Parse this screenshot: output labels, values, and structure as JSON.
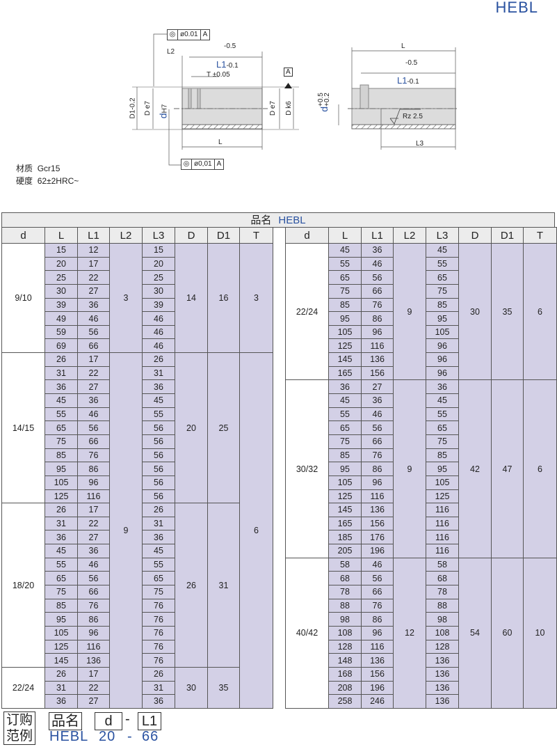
{
  "header": {
    "title": "HEBL"
  },
  "drawing": {
    "left": {
      "tolerance_top": {
        "symbol": "concentricity-icon",
        "value": "ø0.01",
        "datum": "A"
      },
      "dim_minus": "-0.5",
      "L2": "L2",
      "L1": "L1",
      "L1_tol": "-0.1",
      "T": "T ±0.05",
      "datum": "A",
      "D1": "D1-0.2",
      "De7": "D e7",
      "d": "d",
      "d_tol": "H7",
      "De7_right": "D e7",
      "Dk6": "D k6",
      "L": "L",
      "tolerance_bottom": {
        "symbol": "concentricity-icon",
        "value": "ø0,01",
        "datum": "A"
      }
    },
    "right": {
      "L": "L",
      "dim_minus": "-0.5",
      "L1": "L1",
      "L1_tol": "-0.1",
      "d": "d",
      "d_tol_upper": "+0.5",
      "d_tol_lower": "+0.2",
      "roughness": "Rz 2.5",
      "L3": "L3"
    }
  },
  "material": {
    "label": "材质",
    "value": "Gcr15"
  },
  "hardness": {
    "label": "硬度",
    "value": "62±2HRC~"
  },
  "table": {
    "title_label": "品名",
    "title_value": "HEBL",
    "columns": [
      "d",
      "L",
      "L1",
      "L2",
      "L3",
      "D",
      "D1",
      "T"
    ],
    "left_groups": [
      {
        "d": "9/10",
        "L": [
          15,
          20,
          25,
          30,
          39,
          49,
          59,
          69
        ],
        "L1": [
          12,
          17,
          22,
          27,
          36,
          46,
          56,
          66
        ],
        "L3": [
          15,
          20,
          25,
          30,
          39,
          46,
          46,
          46
        ],
        "D": 14,
        "D1": 16
      },
      {
        "d": "14/15",
        "L": [
          26,
          31,
          36,
          45,
          55,
          65,
          75,
          85,
          95,
          105,
          125
        ],
        "L1": [
          17,
          22,
          27,
          36,
          46,
          56,
          66,
          76,
          86,
          96,
          116
        ],
        "L3": [
          26,
          31,
          36,
          45,
          55,
          56,
          56,
          56,
          56,
          56,
          56
        ],
        "D": 20,
        "D1": 25
      },
      {
        "d": "18/20",
        "L": [
          26,
          31,
          36,
          45,
          55,
          65,
          75,
          85,
          95,
          105,
          125,
          145
        ],
        "L1": [
          17,
          22,
          27,
          36,
          46,
          56,
          66,
          76,
          86,
          96,
          116,
          136
        ],
        "L3": [
          26,
          31,
          36,
          45,
          55,
          65,
          75,
          76,
          76,
          76,
          76,
          76
        ],
        "D": 26,
        "D1": 31
      },
      {
        "d": "22/24",
        "L": [
          26,
          31,
          36
        ],
        "L1": [
          17,
          22,
          27
        ],
        "L3": [
          26,
          31,
          36
        ],
        "D": 30,
        "D1": 35
      }
    ],
    "left_L2": [
      {
        "value": 3,
        "groups": 1
      },
      {
        "value": 9,
        "groups": 3
      }
    ],
    "left_T": [
      {
        "value": 3,
        "groups": 1
      },
      {
        "value": 6,
        "groups": 3
      }
    ],
    "right_groups": [
      {
        "d": "22/24",
        "L": [
          45,
          55,
          65,
          75,
          85,
          95,
          105,
          125,
          145,
          165
        ],
        "L1": [
          36,
          46,
          56,
          66,
          76,
          86,
          96,
          116,
          136,
          156
        ],
        "L3": [
          45,
          55,
          65,
          75,
          85,
          95,
          105,
          96,
          96,
          96
        ],
        "L2": 9,
        "D": 30,
        "D1": 35,
        "T": 6
      },
      {
        "d": "30/32",
        "L": [
          36,
          45,
          55,
          65,
          75,
          85,
          95,
          105,
          125,
          145,
          165,
          185,
          205
        ],
        "L1": [
          27,
          36,
          46,
          56,
          66,
          76,
          86,
          96,
          116,
          136,
          156,
          176,
          196
        ],
        "L3": [
          36,
          45,
          55,
          65,
          75,
          85,
          95,
          105,
          125,
          116,
          116,
          116,
          116
        ],
        "L2": 9,
        "D": 42,
        "D1": 47,
        "T": 6
      },
      {
        "d": "40/42",
        "L": [
          58,
          68,
          78,
          88,
          98,
          108,
          128,
          148,
          168,
          208,
          258
        ],
        "L1": [
          46,
          56,
          66,
          76,
          86,
          96,
          116,
          136,
          156,
          196,
          246
        ],
        "L3": [
          58,
          68,
          78,
          88,
          98,
          108,
          128,
          136,
          136,
          136,
          136
        ],
        "L2": 12,
        "D": 54,
        "D1": 60,
        "T": 10
      }
    ]
  },
  "order_example": {
    "label_line1": "订购",
    "label_line2": "范例",
    "part_label": "品名",
    "d_label": "d",
    "dash": "-",
    "L1_label": "L1",
    "part_value": "HEBL",
    "d_value": "20",
    "dash_value": "-",
    "L1_value": "66"
  }
}
